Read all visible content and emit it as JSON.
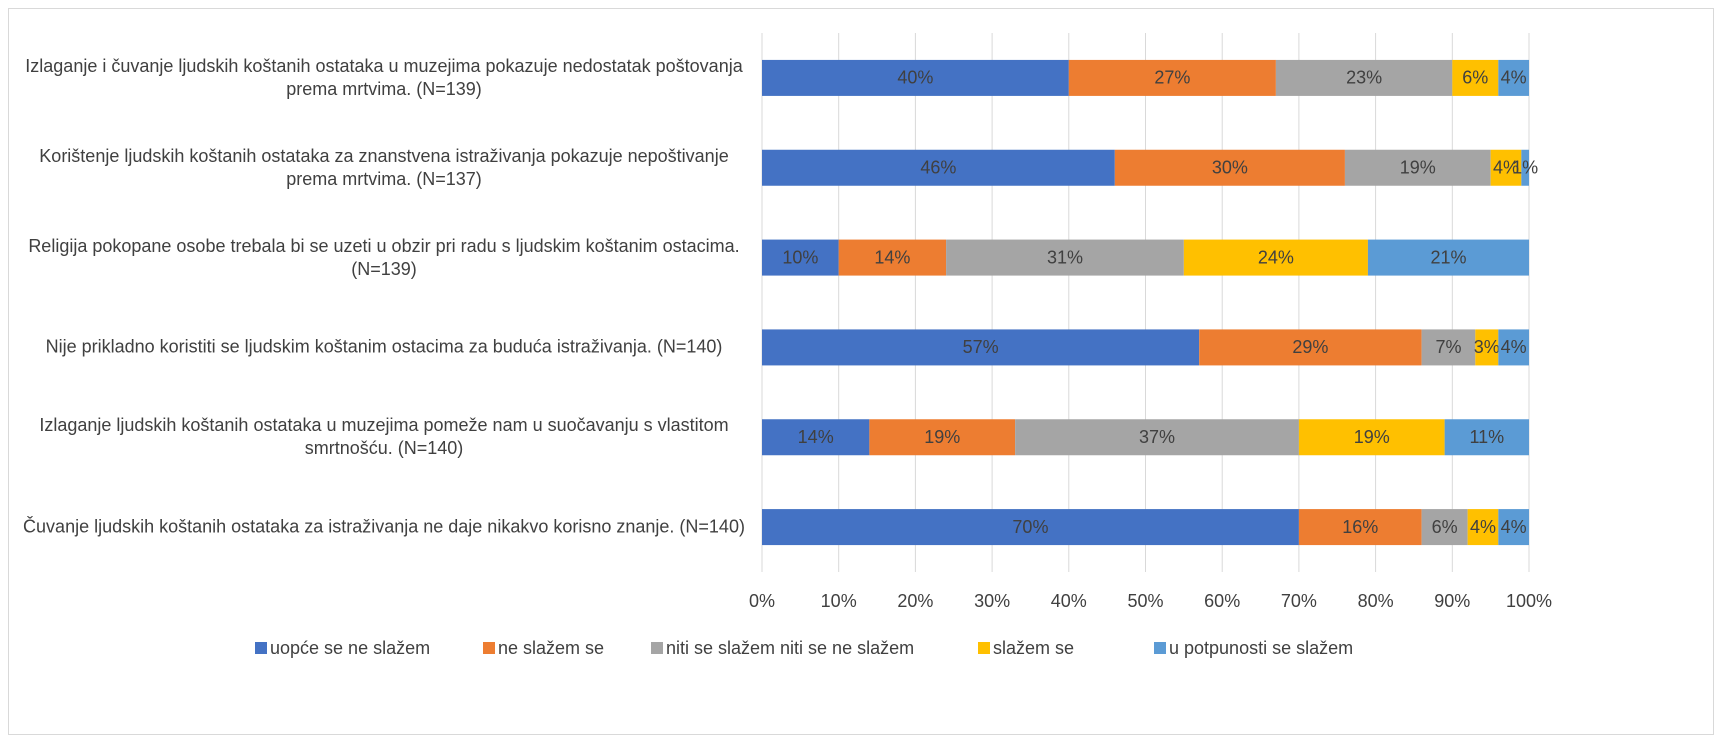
{
  "chart_data": {
    "type": "stacked_bar_horizontal",
    "categories": [
      "Izlaganje i čuvanje ljudskih koštanih ostataka u muzejima pokazuje nedostatak poštovanja prema mrtvima. (N=139)",
      "Korištenje ljudskih koštanih ostataka za znanstvena istraživanja pokazuje nepoštivanje prema mrtvima. (N=137)",
      "Religija pokopane osobe trebala bi se uzeti u obzir pri radu s ljudskim koštanim ostacima. (N=139)",
      "Nije prikladno koristiti se ljudskim koštanim ostacima za buduća istraživanja. (N=140)",
      "Izlaganje ljudskih koštanih ostataka u muzejima pomeže nam u suočavanju s vlastitom smrtnošću. (N=140)",
      "Čuvanje ljudskih koštanih ostataka za istraživanja ne daje nikakvo korisno znanje. (N=140)"
    ],
    "series": [
      {
        "name": "uopće se ne slažem",
        "color": "#4472c4",
        "values": [
          40,
          46,
          10,
          57,
          14,
          70
        ],
        "value_labels": [
          "40%",
          "46%",
          "10%",
          "57%",
          "14%",
          "70%"
        ]
      },
      {
        "name": "ne slažem se",
        "color": "#ed7d31",
        "values": [
          27,
          30,
          14,
          29,
          19,
          16
        ],
        "value_labels": [
          "27%",
          "30%",
          "14%",
          "29%",
          "19%",
          "16%"
        ]
      },
      {
        "name": "niti se slažem niti se ne slažem",
        "color": "#a5a5a5",
        "values": [
          23,
          19,
          31,
          7,
          37,
          6
        ],
        "value_labels": [
          "23%",
          "19%",
          "31%",
          "7%",
          "37%",
          "6%"
        ]
      },
      {
        "name": "slažem se",
        "color": "#ffc000",
        "values": [
          6,
          4,
          24,
          3,
          19,
          4
        ],
        "value_labels": [
          "6%",
          "4%",
          "24%",
          "3%",
          "19%",
          "4%"
        ]
      },
      {
        "name": "u potpunosti se slažem",
        "color": "#5b9bd5",
        "values": [
          4,
          1,
          21,
          4,
          11,
          4
        ],
        "value_labels": [
          "4%",
          "1%",
          "21%",
          "4%",
          "11%",
          "4%"
        ]
      }
    ],
    "xlim": [
      0,
      100
    ],
    "xticks": [
      {
        "value": 0,
        "label": "0%"
      },
      {
        "value": 10,
        "label": "10%"
      },
      {
        "value": 20,
        "label": "20%"
      },
      {
        "value": 30,
        "label": "30%"
      },
      {
        "value": 40,
        "label": "40%"
      },
      {
        "value": 50,
        "label": "50%"
      },
      {
        "value": 60,
        "label": "60%"
      },
      {
        "value": 70,
        "label": "70%"
      },
      {
        "value": 80,
        "label": "80%"
      },
      {
        "value": 90,
        "label": "90%"
      },
      {
        "value": 100,
        "label": "100%"
      }
    ],
    "grid": true,
    "legend": "bottom"
  }
}
